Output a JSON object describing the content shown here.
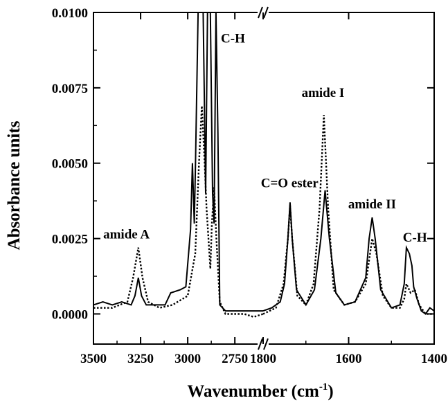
{
  "chart_data": {
    "type": "line",
    "title": "",
    "xlabel": "Wavenumber (cm",
    "xlabel_superscript": "-1",
    "xlabel_suffix": ")",
    "ylabel": "Absorbance units",
    "ylim": [
      -0.001,
      0.01
    ],
    "y_ticks": [
      "0.0000",
      "0.0025",
      "0.0050",
      "0.0075",
      "0.0100"
    ],
    "y_tick_values": [
      0.0,
      0.0025,
      0.005,
      0.0075,
      0.01
    ],
    "x_broken_axis": true,
    "x_segments": [
      {
        "range": [
          3500,
          2600
        ],
        "ticks": [
          3500,
          3250,
          3000,
          2750
        ],
        "tick_labels": [
          "3500",
          "3250",
          "3000",
          "2750"
        ]
      },
      {
        "range": [
          1800,
          1400
        ],
        "ticks": [
          1800,
          1600,
          1400
        ],
        "tick_labels": [
          "1800",
          "1600",
          "1400"
        ]
      }
    ],
    "series": [
      {
        "style": "solid",
        "segments": [
          [
            [
              3500,
              0.0003
            ],
            [
              3450,
              0.0004
            ],
            [
              3400,
              0.0003
            ],
            [
              3350,
              0.0004
            ],
            [
              3300,
              0.0003
            ],
            [
              3280,
              0.0006
            ],
            [
              3262,
              0.0012
            ],
            [
              3245,
              0.0006
            ],
            [
              3220,
              0.0003
            ],
            [
              3180,
              0.0003
            ],
            [
              3120,
              0.0003
            ],
            [
              3090,
              0.0007
            ],
            [
              3040,
              0.0008
            ],
            [
              3010,
              0.0009
            ],
            [
              2985,
              0.0028
            ],
            [
              2975,
              0.005
            ],
            [
              2965,
              0.003
            ],
            [
              2958,
              0.0052
            ],
            [
              2945,
              0.01
            ],
            [
              2930,
              0.01
            ],
            [
              2918,
              0.01
            ],
            [
              2905,
              0.004
            ],
            [
              2895,
              0.01
            ],
            [
              2880,
              0.01
            ],
            [
              2868,
              0.004
            ],
            [
              2860,
              0.003
            ],
            [
              2850,
              0.01
            ],
            [
              2840,
              0.006
            ],
            [
              2830,
              0.0003
            ],
            [
              2800,
              0.0001
            ],
            [
              2750,
              0.0001
            ],
            [
              2700,
              0.0001
            ],
            [
              2650,
              0.0001
            ],
            [
              2600,
              0.0001
            ]
          ],
          [
            [
              1800,
              0.0001
            ],
            [
              1780,
              0.0002
            ],
            [
              1760,
              0.0004
            ],
            [
              1750,
              0.001
            ],
            [
              1742,
              0.0025
            ],
            [
              1737,
              0.0037
            ],
            [
              1732,
              0.0025
            ],
            [
              1722,
              0.0008
            ],
            [
              1700,
              0.0003
            ],
            [
              1680,
              0.0008
            ],
            [
              1665,
              0.0025
            ],
            [
              1655,
              0.0041
            ],
            [
              1645,
              0.0025
            ],
            [
              1630,
              0.0007
            ],
            [
              1610,
              0.0003
            ],
            [
              1585,
              0.0004
            ],
            [
              1560,
              0.0012
            ],
            [
              1552,
              0.0025
            ],
            [
              1545,
              0.0032
            ],
            [
              1538,
              0.0025
            ],
            [
              1525,
              0.0008
            ],
            [
              1500,
              0.0002
            ],
            [
              1480,
              0.0003
            ],
            [
              1470,
              0.001
            ],
            [
              1465,
              0.0022
            ],
            [
              1458,
              0.002
            ],
            [
              1452,
              0.0016
            ],
            [
              1448,
              0.0009
            ],
            [
              1440,
              0.0005
            ],
            [
              1430,
              0.0001
            ],
            [
              1420,
              0.0
            ],
            [
              1410,
              0.0002
            ],
            [
              1400,
              0.0001
            ]
          ]
        ]
      },
      {
        "style": "dotted",
        "segments": [
          [
            [
              3500,
              0.0002
            ],
            [
              3400,
              0.0002
            ],
            [
              3320,
              0.0004
            ],
            [
              3290,
              0.0012
            ],
            [
              3262,
              0.0022
            ],
            [
              3240,
              0.0012
            ],
            [
              3210,
              0.0004
            ],
            [
              3150,
              0.0002
            ],
            [
              3080,
              0.0003
            ],
            [
              3000,
              0.0006
            ],
            [
              2960,
              0.002
            ],
            [
              2940,
              0.005
            ],
            [
              2925,
              0.0069
            ],
            [
              2910,
              0.005
            ],
            [
              2900,
              0.0035
            ],
            [
              2880,
              0.0015
            ],
            [
              2872,
              0.003
            ],
            [
              2860,
              0.0042
            ],
            [
              2848,
              0.0025
            ],
            [
              2830,
              0.0004
            ],
            [
              2800,
              0.0
            ],
            [
              2750,
              0.0
            ],
            [
              2700,
              0.0
            ],
            [
              2650,
              -0.0001
            ],
            [
              2600,
              0.0
            ]
          ],
          [
            [
              1800,
              0.0
            ],
            [
              1770,
              0.0002
            ],
            [
              1752,
              0.001
            ],
            [
              1742,
              0.0025
            ],
            [
              1737,
              0.0036
            ],
            [
              1732,
              0.0025
            ],
            [
              1720,
              0.0006
            ],
            [
              1700,
              0.0003
            ],
            [
              1682,
              0.001
            ],
            [
              1668,
              0.0035
            ],
            [
              1658,
              0.0066
            ],
            [
              1648,
              0.0035
            ],
            [
              1635,
              0.0008
            ],
            [
              1610,
              0.0003
            ],
            [
              1585,
              0.0004
            ],
            [
              1560,
              0.001
            ],
            [
              1550,
              0.002
            ],
            [
              1545,
              0.0025
            ],
            [
              1535,
              0.002
            ],
            [
              1520,
              0.0006
            ],
            [
              1500,
              0.0002
            ],
            [
              1480,
              0.0002
            ],
            [
              1470,
              0.0005
            ],
            [
              1465,
              0.001
            ],
            [
              1455,
              0.0007
            ],
            [
              1445,
              0.0008
            ],
            [
              1435,
              0.0003
            ],
            [
              1420,
              0.0
            ],
            [
              1400,
              0.0
            ]
          ]
        ]
      }
    ],
    "annotations": [
      {
        "text": "C-H",
        "x": 2760,
        "y": 0.009,
        "segment": 0
      },
      {
        "text": "amide A",
        "x": 3325,
        "y": 0.0025,
        "segment": 0
      },
      {
        "text": "amide I",
        "x": 1660,
        "y": 0.0072,
        "segment": 1
      },
      {
        "text": "C=O ester",
        "x": 1738,
        "y": 0.0042,
        "segment": 1
      },
      {
        "text": "amide II",
        "x": 1545,
        "y": 0.0035,
        "segment": 1
      },
      {
        "text": "C-H",
        "x": 1445,
        "y": 0.0024,
        "segment": 1
      }
    ]
  }
}
